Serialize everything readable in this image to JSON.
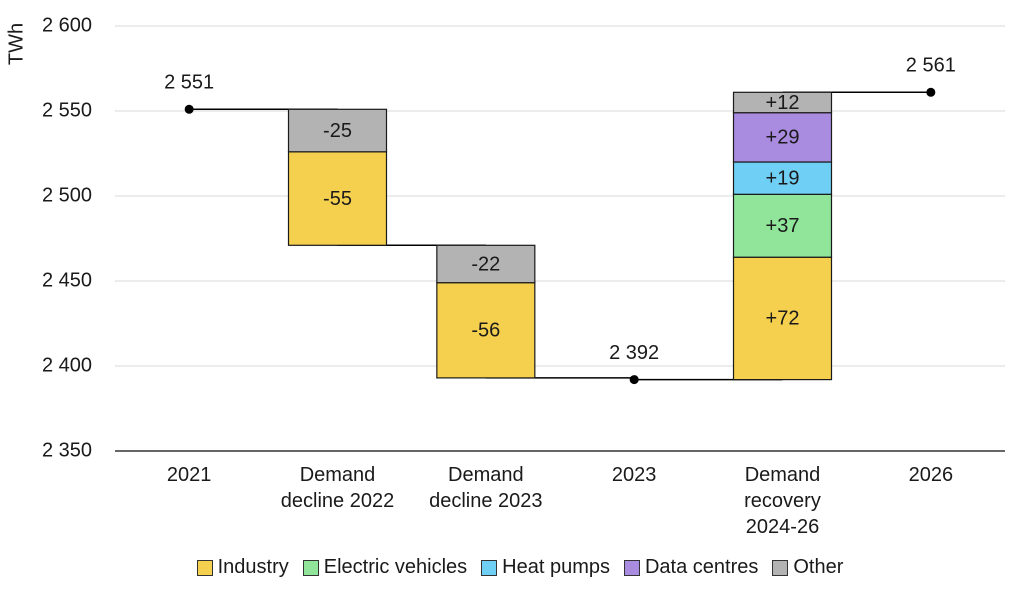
{
  "chart_data": {
    "type": "waterfall",
    "y_label": "TWh",
    "categories": [
      "2021",
      "Demand decline 2022",
      "Demand decline 2023",
      "2023",
      "Demand recovery 2024-26",
      "2026"
    ],
    "totals": {
      "values": [
        2551,
        null,
        null,
        2392,
        null,
        2561
      ],
      "value_labels": [
        "2 551",
        null,
        null,
        "2 392",
        null,
        "2 561"
      ],
      "color": "#000000"
    },
    "series": [
      {
        "name": "Industry",
        "color": "#f5d04e",
        "label_color": "#1a1a1a",
        "values": [
          null,
          -55,
          -56,
          null,
          72,
          null
        ],
        "value_labels": [
          null,
          "-55",
          "-56",
          null,
          "+72",
          null
        ]
      },
      {
        "name": "Electric vehicles",
        "color": "#90e59a",
        "label_color": "#1a1a1a",
        "values": [
          null,
          null,
          null,
          null,
          37,
          null
        ],
        "value_labels": [
          null,
          null,
          null,
          null,
          "+37",
          null
        ]
      },
      {
        "name": "Heat pumps",
        "color": "#6fcff5",
        "label_color": "#1a1a1a",
        "values": [
          null,
          null,
          null,
          null,
          19,
          null
        ],
        "value_labels": [
          null,
          null,
          null,
          null,
          "+19",
          null
        ]
      },
      {
        "name": "Data centres",
        "color": "#a98be0",
        "label_color": "#ffffff",
        "values": [
          null,
          null,
          null,
          null,
          29,
          null
        ],
        "value_labels": [
          null,
          null,
          null,
          null,
          "+29",
          null
        ]
      },
      {
        "name": "Other",
        "color": "#b3b3b3",
        "label_color": "#1a1a1a",
        "values": [
          null,
          -25,
          -22,
          null,
          12,
          null
        ],
        "value_labels": [
          null,
          "-25",
          "-22",
          null,
          "+12",
          null
        ]
      }
    ],
    "ylim": [
      2350,
      2600
    ],
    "yticks": [
      {
        "value": 2350,
        "label": "2 350"
      },
      {
        "value": 2400,
        "label": "2 400"
      },
      {
        "value": 2450,
        "label": "2 450"
      },
      {
        "value": 2500,
        "label": "2 500"
      },
      {
        "value": 2550,
        "label": "2 550"
      },
      {
        "value": 2600,
        "label": "2 600"
      }
    ],
    "grid": true,
    "legend": "bottom"
  }
}
